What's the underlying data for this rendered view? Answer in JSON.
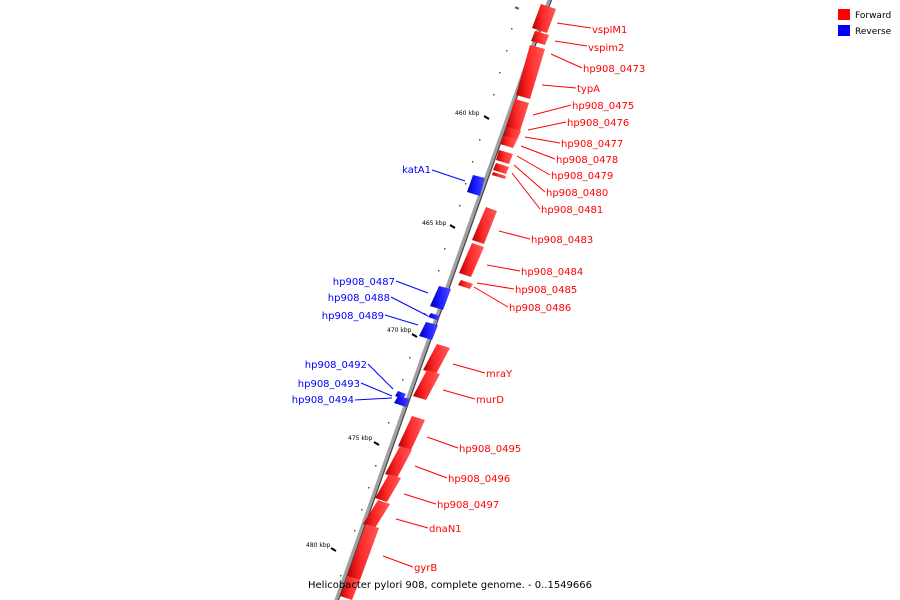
{
  "legend": {
    "forward": {
      "label": "Forward",
      "color": "#ff0000"
    },
    "reverse": {
      "label": "Reverse",
      "color": "#0000ff"
    }
  },
  "caption": "Helicobacter pylori 908, complete genome. - 0..1549666",
  "ticks": [
    "460 kbp",
    "465 kbp",
    "470 kbp",
    "475 kbp",
    "480 kbp"
  ],
  "genes": {
    "forward": [
      "vspIM1",
      "vspim2",
      "hp908_0473",
      "typA",
      "hp908_0475",
      "hp908_0476",
      "hp908_0477",
      "hp908_0478",
      "hp908_0479",
      "hp908_0480",
      "hp908_0481",
      "hp908_0483",
      "hp908_0484",
      "hp908_0485",
      "hp908_0486",
      "mraY",
      "murD",
      "hp908_0495",
      "hp908_0496",
      "hp908_0497",
      "dnaN1",
      "gyrB"
    ],
    "reverse": [
      "katA1",
      "hp908_0487",
      "hp908_0488",
      "hp908_0489",
      "hp908_0492",
      "hp908_0493",
      "hp908_0494"
    ]
  }
}
